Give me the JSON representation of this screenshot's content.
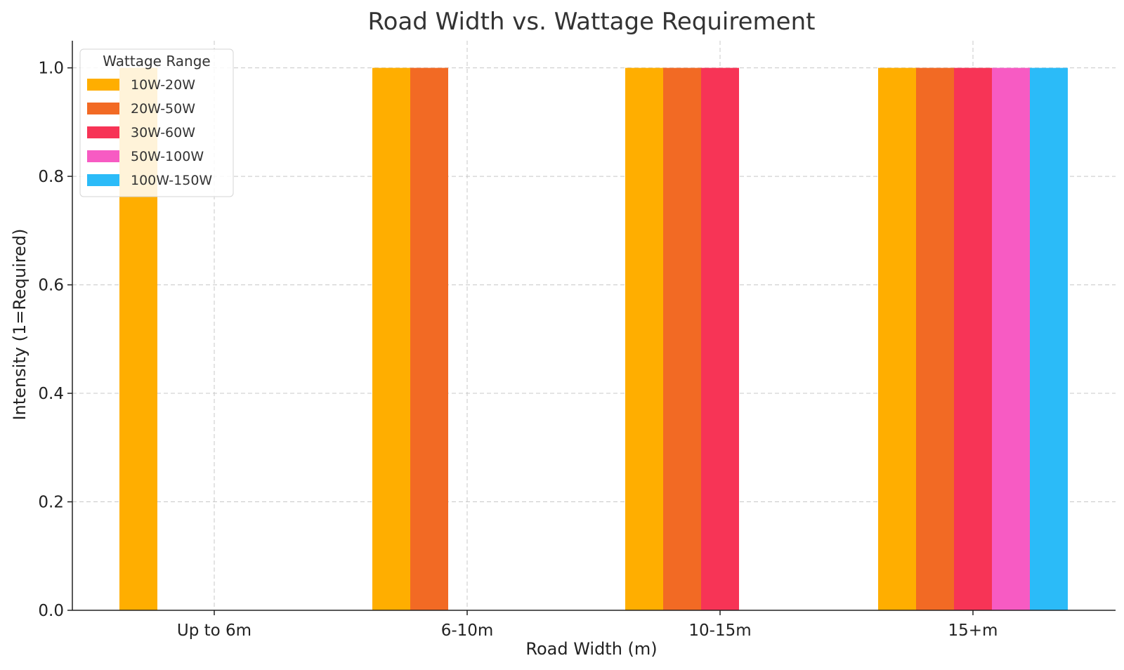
{
  "chart_data": {
    "type": "bar",
    "title": "Road Width vs. Wattage Requirement",
    "xlabel": "Road Width (m)",
    "ylabel": "Intensity (1=Required)",
    "categories": [
      "Up to 6m",
      "6-10m",
      "10-15m",
      "15+m"
    ],
    "ylim": [
      0,
      1.05
    ],
    "yticks": [
      "0.0",
      "0.2",
      "0.4",
      "0.6",
      "0.8",
      "1.0"
    ],
    "grid": true,
    "legend": {
      "title": "Wattage Range",
      "placement": "top-left"
    },
    "series": [
      {
        "name": "10W-20W",
        "color": "#FFAE00",
        "values": [
          1,
          1,
          1,
          1
        ]
      },
      {
        "name": "20W-50W",
        "color": "#F26A24",
        "values": [
          0,
          1,
          1,
          1
        ]
      },
      {
        "name": "30W-60W",
        "color": "#F73456",
        "values": [
          0,
          0,
          1,
          1
        ]
      },
      {
        "name": "50W-100W",
        "color": "#F75BC3",
        "values": [
          0,
          0,
          0,
          1
        ]
      },
      {
        "name": "100W-150W",
        "color": "#2BBBF8",
        "values": [
          0,
          0,
          0,
          1
        ]
      }
    ]
  }
}
